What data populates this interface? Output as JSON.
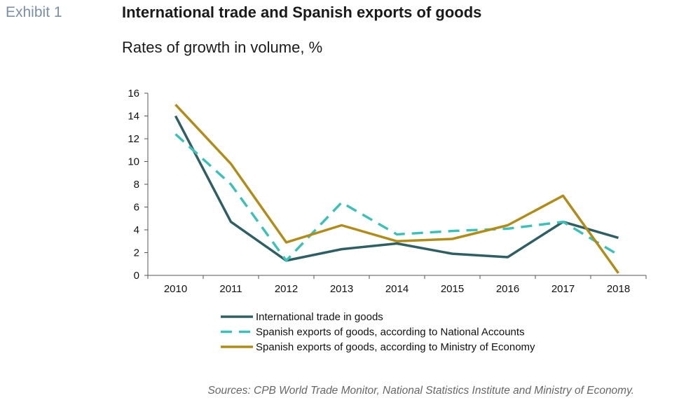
{
  "header": {
    "exhibit": "Exhibit 1",
    "title": "International trade and Spanish exports of goods",
    "subtitle": "Rates of growth in volume, %"
  },
  "source": "Sources: CPB World Trade Monitor, National Statistics Institute and Ministry of Economy.",
  "chart_data": {
    "type": "line",
    "title": "International trade and Spanish exports of goods",
    "subtitle": "Rates of growth in volume, %",
    "x": [
      "2010",
      "2011",
      "2012",
      "2013",
      "2014",
      "2015",
      "2016",
      "2017",
      "2018"
    ],
    "ylim": [
      0,
      16
    ],
    "yticks": [
      0,
      2,
      4,
      6,
      8,
      10,
      12,
      14,
      16
    ],
    "grid": false,
    "legend_position": "bottom",
    "series": [
      {
        "name": "International trade in goods",
        "color": "#2f5f63",
        "style": "solid",
        "values": [
          14.0,
          4.7,
          1.3,
          2.3,
          2.8,
          1.9,
          1.6,
          4.7,
          3.3
        ]
      },
      {
        "name": "Spanish exports of goods, according to National Accounts",
        "color": "#3ec0b8",
        "style": "dashed",
        "values": [
          12.4,
          8.0,
          1.3,
          6.4,
          3.6,
          3.9,
          4.1,
          4.7,
          1.8
        ]
      },
      {
        "name": "Spanish exports of goods, according to Ministry of Economy",
        "color": "#b08d1a",
        "style": "solid",
        "values": [
          15.0,
          9.8,
          2.9,
          4.4,
          3.0,
          3.2,
          4.4,
          7.0,
          0.2
        ]
      }
    ]
  }
}
